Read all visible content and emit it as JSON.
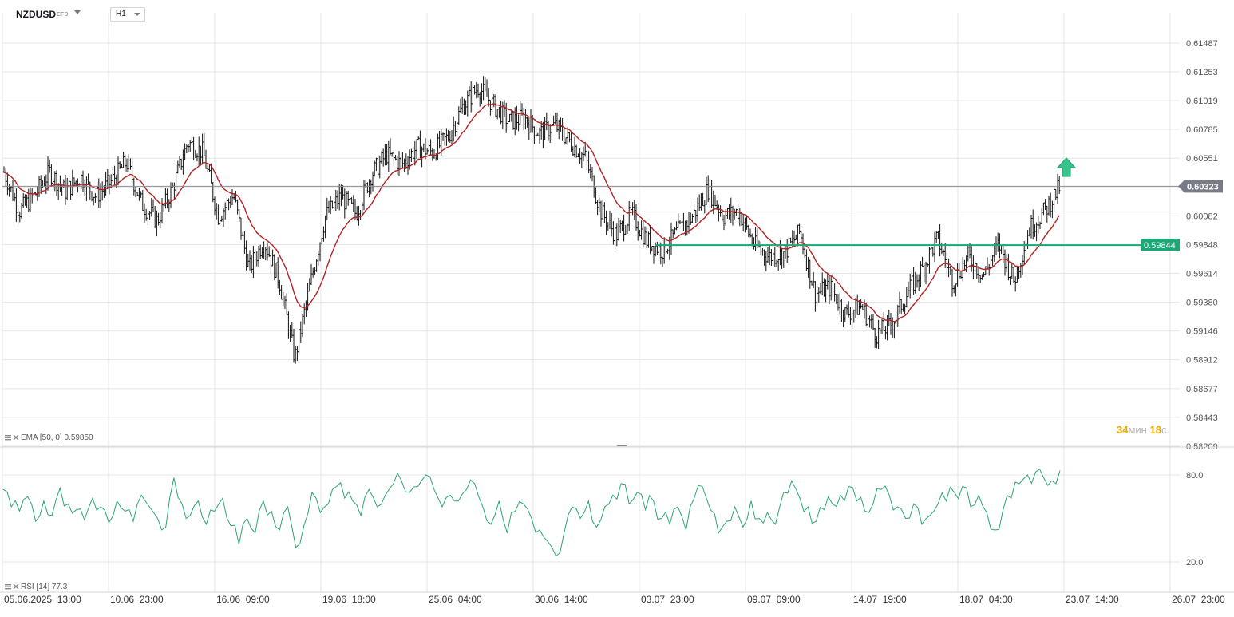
{
  "header": {
    "symbol": "NZDUSD",
    "symbol_type": "CFD",
    "timeframe": "H1"
  },
  "indicators": {
    "ema_legend": "EMA [50, 0] 0.59850",
    "rsi_legend": "RSI [14] 77.3"
  },
  "countdown": {
    "minutes": "34",
    "min_unit": "мин",
    "seconds": "18",
    "sec_unit": "с."
  },
  "chart_data": [
    {
      "type": "candlestick",
      "pair": "NZDUSD",
      "timeframe": "H1",
      "price_axis_ticks": [
        "0.61487",
        "0.61253",
        "0.61019",
        "0.60785",
        "0.60551",
        "0.60317",
        "0.60082",
        "0.59848",
        "0.59614",
        "0.59380",
        "0.59146",
        "0.58912",
        "0.58677",
        "0.58443",
        "0.58209"
      ],
      "ylim": [
        0.58209,
        0.61487
      ],
      "time_axis_labels": [
        "05.06.2025  13:00",
        "10.06  23:00",
        "16.06  09:00",
        "19.06  18:00",
        "25.06  04:00",
        "30.06  14:00",
        "03.07  23:00",
        "09.07  09:00",
        "14.07  19:00",
        "18.07  04:00",
        "23.07  14:00",
        "26.07  23:00"
      ],
      "current_price": {
        "value": "0.60323",
        "color": "#787b86"
      },
      "horizontal_line": {
        "value": "0.59844",
        "color": "#1aa875",
        "start_label": "03.07  23:00"
      },
      "arrow_signal": {
        "direction": "up",
        "color": "#35c48b"
      },
      "price_path": [
        [
          "05.06  13:00",
          0.6044
        ],
        [
          "06.06",
          0.6012
        ],
        [
          "07.06",
          0.6025
        ],
        [
          "09.06",
          0.6044
        ],
        [
          "10.06",
          0.6028
        ],
        [
          "11.06",
          0.604
        ],
        [
          "12.06",
          0.6024
        ],
        [
          "13.06",
          0.6036
        ],
        [
          "13.06  18:00",
          0.6052
        ],
        [
          "14.06",
          0.6018
        ],
        [
          "15.06",
          0.6004
        ],
        [
          "16.06",
          0.603
        ],
        [
          "16.06  14:00",
          0.6068
        ],
        [
          "17.06",
          0.606
        ],
        [
          "18.06",
          0.6008
        ],
        [
          "18.06  12:00",
          0.6025
        ],
        [
          "19.06",
          0.5965
        ],
        [
          "19.06  18:00",
          0.5988
        ],
        [
          "20.06",
          0.5955
        ],
        [
          "21.06",
          0.5892
        ],
        [
          "21.06  12:00",
          0.5952
        ],
        [
          "23.06",
          0.6008
        ],
        [
          "24.06",
          0.6024
        ],
        [
          "24.06  12:00",
          0.601
        ],
        [
          "25.06",
          0.6042
        ],
        [
          "26.06",
          0.6058
        ],
        [
          "27.06",
          0.605
        ],
        [
          "28.06",
          0.6064
        ],
        [
          "29.06",
          0.606
        ],
        [
          "30.06",
          0.6072
        ],
        [
          "30.06  14:00",
          0.6098
        ],
        [
          "01.07",
          0.6113
        ],
        [
          "01.07  12:00",
          0.6098
        ],
        [
          "02.07",
          0.6085
        ],
        [
          "02.07  12:00",
          0.6088
        ],
        [
          "03.07",
          0.6075
        ],
        [
          "03.07  23:00",
          0.6082
        ],
        [
          "04.07",
          0.6068
        ],
        [
          "05.07",
          0.6055
        ],
        [
          "06.07",
          0.6012
        ],
        [
          "07.07",
          0.5992
        ],
        [
          "07.07  12:00",
          0.601
        ],
        [
          "08.07",
          0.5988
        ],
        [
          "08.07  12:00",
          0.598
        ],
        [
          "09.07",
          0.5995
        ],
        [
          "09.07  09:00",
          0.6008
        ],
        [
          "10.07",
          0.603
        ],
        [
          "10.07  12:00",
          0.6008
        ],
        [
          "11.07",
          0.6012
        ],
        [
          "12.07",
          0.5985
        ],
        [
          "13.07",
          0.5975
        ],
        [
          "14.07",
          0.5978
        ],
        [
          "14.07  19:00",
          0.5995
        ],
        [
          "15.07",
          0.5945
        ],
        [
          "15.07  12:00",
          0.595
        ],
        [
          "16.07",
          0.5928
        ],
        [
          "16.07  12:00",
          0.5935
        ],
        [
          "17.07",
          0.5912
        ],
        [
          "17.07  12:00",
          0.592
        ],
        [
          "18.07",
          0.5945
        ],
        [
          "18.07  04:00",
          0.5965
        ],
        [
          "18.07  12:00",
          0.599
        ],
        [
          "19.07",
          0.5955
        ],
        [
          "20.07",
          0.5975
        ],
        [
          "21.07",
          0.596
        ],
        [
          "21.07  12:00",
          0.5985
        ],
        [
          "22.07",
          0.5955
        ],
        [
          "22.07  12:00",
          0.5998
        ],
        [
          "22.07  18:00",
          0.6012
        ],
        [
          "23.07",
          0.6032
        ]
      ],
      "ema": {
        "label": "EMA [50, 0]",
        "value": "0.59850",
        "color": "#b22222"
      }
    },
    {
      "type": "line",
      "name": "RSI",
      "period": 14,
      "ylim": [
        0,
        100
      ],
      "levels": [
        "80.0",
        "20.0"
      ],
      "current_value": "77.3",
      "color": "#2ca66f",
      "values": [
        70,
        58,
        55,
        65,
        48,
        62,
        52,
        71,
        60,
        56,
        49,
        64,
        58,
        47,
        62,
        55,
        48,
        66,
        58,
        50,
        44,
        78,
        60,
        52,
        62,
        46,
        55,
        64,
        45,
        32,
        50,
        40,
        62,
        55,
        42,
        58,
        30,
        45,
        68,
        54,
        60,
        72,
        64,
        62,
        52,
        70,
        58,
        66,
        74,
        76,
        68,
        72,
        80,
        70,
        58,
        66,
        62,
        70,
        74,
        58,
        46,
        62,
        40,
        55,
        60,
        50,
        42,
        34,
        24,
        40,
        58,
        50,
        62,
        44,
        58,
        66,
        74,
        60,
        68,
        56,
        62,
        50,
        46,
        58,
        42,
        64,
        72,
        56,
        40,
        48,
        58,
        44,
        62,
        50,
        54,
        46,
        68,
        76,
        64,
        58,
        48,
        56,
        60,
        66,
        72,
        62,
        55,
        60,
        70,
        66,
        58,
        50,
        60,
        46,
        52,
        60,
        62,
        68,
        72,
        58,
        66,
        54,
        42,
        56,
        64,
        74,
        80,
        82,
        78,
        76,
        83
      ]
    }
  ]
}
